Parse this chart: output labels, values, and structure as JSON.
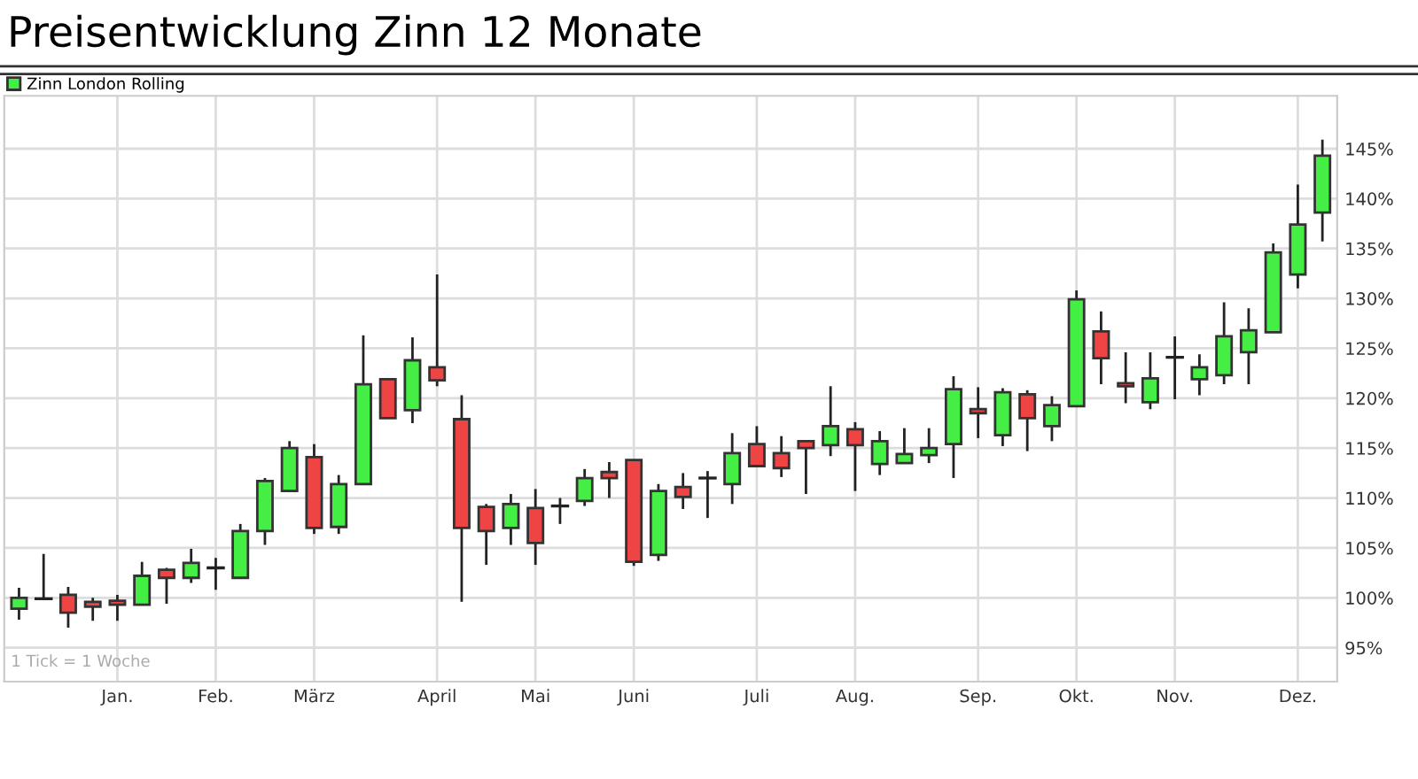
{
  "chart_data": {
    "type": "candlestick",
    "title": "Preisentwicklung Zinn 12 Monate",
    "categories": [
      null,
      null,
      null,
      null,
      "Jan.",
      null,
      null,
      null,
      "Feb.",
      null,
      null,
      null,
      "März",
      null,
      null,
      null,
      null,
      "April",
      null,
      null,
      null,
      "Mai",
      null,
      null,
      null,
      "Juni",
      null,
      null,
      null,
      null,
      "Juli",
      null,
      null,
      null,
      "Aug.",
      null,
      null,
      null,
      null,
      "Sep.",
      null,
      null,
      null,
      "Okt.",
      null,
      null,
      null,
      "Nov.",
      null,
      null,
      null,
      null,
      "Dez.",
      null
    ],
    "series": [
      {
        "name": "Zinn London Rolling",
        "color": "#44ee44",
        "colors": [
          "#44ee44",
          "#222222",
          "#ee4444",
          "#ee4444",
          "#ee4444",
          "#44ee44",
          "#ee4444",
          "#44ee44",
          "#222222",
          "#44ee44",
          "#44ee44",
          "#44ee44",
          "#ee4444",
          "#44ee44",
          "#44ee44",
          "#ee4444",
          "#44ee44",
          "#ee4444",
          "#ee4444",
          "#ee4444",
          "#44ee44",
          "#ee4444",
          "#222222",
          "#44ee44",
          "#ee4444",
          "#ee4444",
          "#44ee44",
          "#ee4444",
          "#222222",
          "#44ee44",
          "#ee4444",
          "#ee4444",
          "#ee4444",
          "#44ee44",
          "#ee4444",
          "#44ee44",
          "#44ee44",
          "#44ee44",
          "#44ee44",
          "#ee4444",
          "#44ee44",
          "#ee4444",
          "#44ee44",
          "#44ee44",
          "#ee4444",
          "#ee4444",
          "#44ee44",
          "#222222",
          "#44ee44",
          "#44ee44",
          "#44ee44",
          "#44ee44",
          "#44ee44",
          "#44ee44"
        ],
        "ohlc": [
          [
            98.9,
            101.0,
            97.8,
            100.0
          ],
          [
            99.9,
            104.4,
            99.9,
            99.9
          ],
          [
            100.3,
            101.1,
            97.0,
            98.5
          ],
          [
            99.6,
            100.0,
            97.7,
            99.1
          ],
          [
            99.7,
            100.3,
            97.7,
            99.3
          ],
          [
            99.3,
            103.6,
            99.3,
            102.2
          ],
          [
            102.8,
            103.0,
            99.4,
            102.0
          ],
          [
            102.0,
            104.9,
            101.5,
            103.5
          ],
          [
            103.0,
            104.0,
            100.8,
            103.0
          ],
          [
            102.0,
            107.4,
            102.0,
            106.7
          ],
          [
            106.7,
            112.0,
            105.3,
            111.7
          ],
          [
            110.7,
            115.7,
            110.7,
            115.0
          ],
          [
            114.1,
            115.4,
            106.4,
            107.0
          ],
          [
            107.1,
            112.3,
            106.4,
            111.4
          ],
          [
            111.4,
            126.3,
            111.4,
            121.4
          ],
          [
            121.9,
            121.9,
            118.0,
            118.0
          ],
          [
            118.8,
            126.1,
            117.5,
            123.8
          ],
          [
            123.1,
            132.4,
            121.2,
            121.8
          ],
          [
            117.9,
            120.3,
            99.6,
            107.0
          ],
          [
            109.1,
            109.4,
            103.3,
            106.7
          ],
          [
            107.0,
            110.4,
            105.3,
            109.4
          ],
          [
            109.0,
            110.9,
            103.3,
            105.5
          ],
          [
            109.2,
            110.0,
            107.4,
            109.2
          ],
          [
            109.7,
            112.9,
            109.2,
            112.0
          ],
          [
            112.6,
            113.6,
            110.0,
            112.0
          ],
          [
            113.8,
            113.8,
            103.2,
            103.6
          ],
          [
            104.3,
            111.4,
            103.7,
            110.7
          ],
          [
            111.1,
            112.5,
            108.9,
            110.1
          ],
          [
            112.0,
            112.7,
            108.0,
            112.0
          ],
          [
            111.4,
            116.5,
            109.4,
            114.5
          ],
          [
            115.4,
            117.2,
            113.2,
            113.2
          ],
          [
            114.5,
            116.2,
            112.1,
            113.0
          ],
          [
            115.7,
            115.7,
            110.4,
            115.0
          ],
          [
            115.3,
            121.2,
            114.2,
            117.2
          ],
          [
            116.9,
            117.6,
            110.7,
            115.3
          ],
          [
            113.4,
            116.7,
            112.3,
            115.7
          ],
          [
            113.5,
            117.0,
            113.5,
            114.4
          ],
          [
            114.3,
            117.0,
            113.5,
            115.0
          ],
          [
            115.4,
            122.2,
            112.0,
            120.9
          ],
          [
            118.9,
            121.1,
            116.0,
            118.5
          ],
          [
            116.3,
            121.0,
            115.2,
            120.6
          ],
          [
            120.4,
            120.8,
            114.7,
            118.0
          ],
          [
            117.2,
            120.2,
            115.7,
            119.3
          ],
          [
            119.2,
            130.8,
            119.2,
            129.9
          ],
          [
            126.7,
            128.7,
            121.4,
            124.0
          ],
          [
            121.5,
            124.6,
            119.5,
            121.2
          ],
          [
            119.6,
            124.6,
            118.9,
            122.0
          ],
          [
            124.1,
            126.2,
            119.9,
            124.1
          ],
          [
            121.9,
            124.4,
            120.3,
            123.1
          ],
          [
            122.3,
            129.6,
            121.4,
            126.2
          ],
          [
            124.6,
            129.0,
            121.4,
            126.8
          ],
          [
            126.6,
            135.5,
            126.6,
            134.6
          ],
          [
            132.4,
            141.4,
            131.0,
            137.4
          ],
          [
            138.6,
            145.9,
            135.7,
            144.3
          ]
        ]
      }
    ],
    "ylim": [
      91.6,
      150.3
    ],
    "yticks": [
      {
        "value": 95,
        "label": "95%"
      },
      {
        "value": 100,
        "label": "100%"
      },
      {
        "value": 105,
        "label": "105%"
      },
      {
        "value": 110,
        "label": "110%"
      },
      {
        "value": 115,
        "label": "115%"
      },
      {
        "value": 120,
        "label": "120%"
      },
      {
        "value": 125,
        "label": "125%"
      },
      {
        "value": 130,
        "label": "130%"
      },
      {
        "value": 135,
        "label": "135%"
      },
      {
        "value": 140,
        "label": "140%"
      },
      {
        "value": 145,
        "label": "145%"
      }
    ],
    "grid": true,
    "legend": "top left",
    "annotations": [
      "1 Tick = 1 Woche"
    ]
  }
}
